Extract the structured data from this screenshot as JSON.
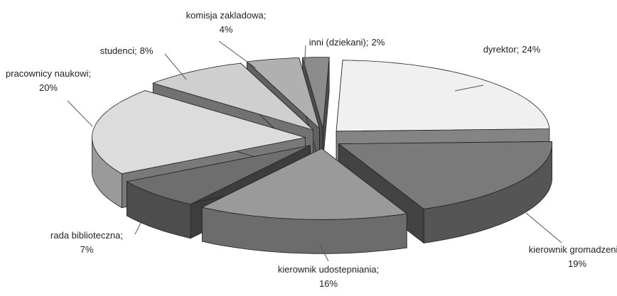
{
  "chart_data": {
    "type": "pie3d",
    "categories": [
      "dyrektor;",
      "kierownik gromadzenia;",
      "kierownik udostepniania;",
      "rada biblioteczna;",
      "pracownicy naukowi;",
      "studenci;",
      "komisja zakladowa;",
      "inni (dziekani);"
    ],
    "values": [
      24,
      19,
      16,
      7,
      20,
      8,
      4,
      2
    ],
    "value_labels": [
      "24%",
      "19%",
      "16%",
      "7%",
      "20%",
      "8%",
      "4%",
      "2%"
    ],
    "colors": [
      "#f0f0f0",
      "#7a7a7a",
      "#9a9a9a",
      "#6e6e6e",
      "#dcdcdc",
      "#cfcfcf",
      "#b0b0b0",
      "#8c8c8c"
    ]
  }
}
